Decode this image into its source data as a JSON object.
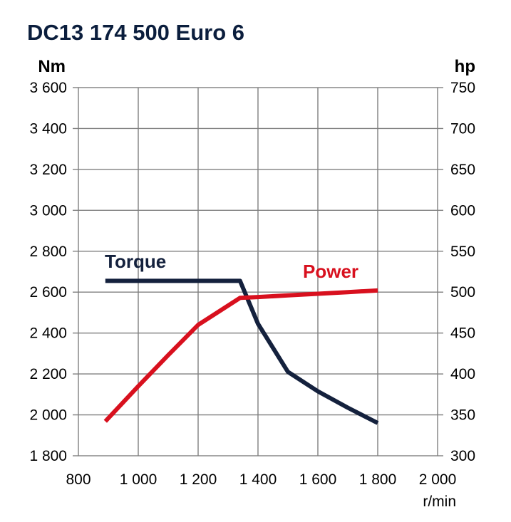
{
  "chart_data": {
    "type": "line",
    "title": "DC13 174  500 Euro 6",
    "xlabel": "r/min",
    "y_left_unit": "Nm",
    "y_right_unit": "hp",
    "xlim": [
      800,
      2000
    ],
    "ylim_left": [
      1800,
      3600
    ],
    "ylim_right": [
      300,
      750
    ],
    "x_ticks": [
      "800",
      "1 000",
      "1 200",
      "1 400",
      "1 600",
      "1 800",
      "2 000"
    ],
    "x_tick_values": [
      800,
      1000,
      1200,
      1400,
      1600,
      1800,
      2000
    ],
    "y_left_ticks": [
      "1 800",
      "2 000",
      "2 200",
      "2 400",
      "2 600",
      "2 800",
      "3 000",
      "3 200",
      "3 400",
      "3 600"
    ],
    "y_left_tick_values": [
      1800,
      2000,
      2200,
      2400,
      2600,
      2800,
      3000,
      3200,
      3400,
      3600
    ],
    "y_right_ticks": [
      "300",
      "350",
      "400",
      "450",
      "500",
      "550",
      "600",
      "650",
      "700",
      "750"
    ],
    "y_right_tick_values": [
      300,
      350,
      400,
      450,
      500,
      550,
      600,
      650,
      700,
      750
    ],
    "grid": true,
    "series": [
      {
        "name": "Torque",
        "axis": "left",
        "color": "#14213d",
        "x": [
          890,
          1000,
          1100,
          1200,
          1300,
          1340,
          1400,
          1500,
          1600,
          1700,
          1800
        ],
        "y": [
          2655,
          2655,
          2655,
          2655,
          2655,
          2655,
          2445,
          2210,
          2115,
          2035,
          1960
        ]
      },
      {
        "name": "Power",
        "axis": "right",
        "color": "#d8101e",
        "x": [
          890,
          1000,
          1100,
          1200,
          1340,
          1400,
          1500,
          1600,
          1700,
          1800
        ],
        "y": [
          342,
          385,
          423,
          460,
          493,
          494,
          496,
          498,
          500,
          502
        ]
      }
    ]
  }
}
